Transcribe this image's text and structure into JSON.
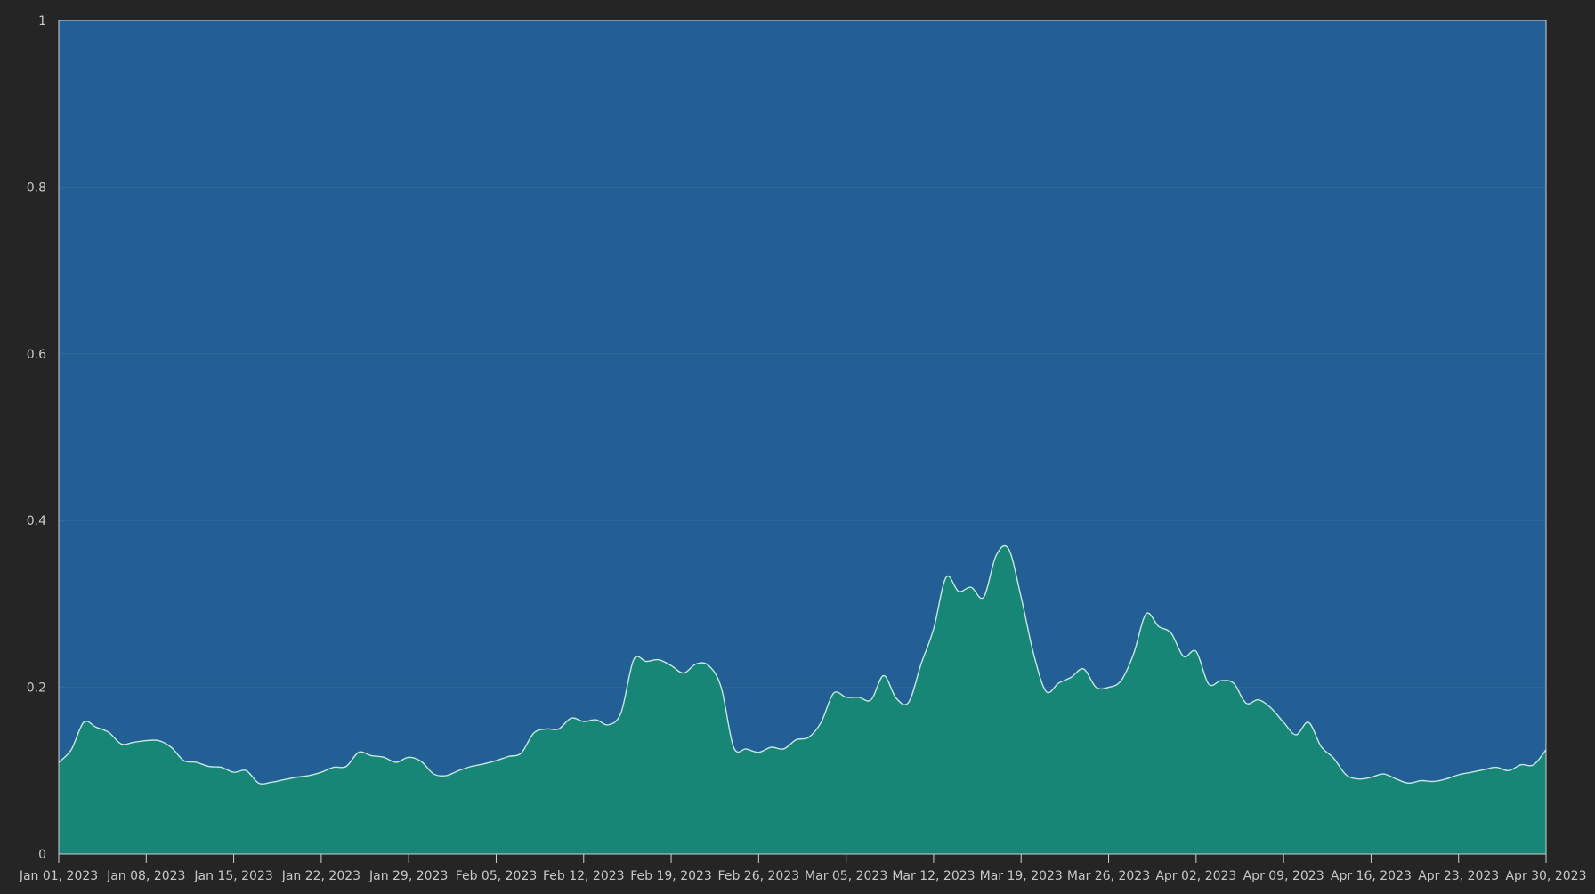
{
  "chart_data": {
    "type": "area",
    "title": "",
    "xlabel": "",
    "ylabel": "",
    "ylim": [
      0,
      1
    ],
    "xlim": [
      "2023-01-01",
      "2023-04-30"
    ],
    "grid": true,
    "legend": "none",
    "y_ticks": [
      {
        "value": 0,
        "label": "0"
      },
      {
        "value": 0.2,
        "label": "0.2"
      },
      {
        "value": 0.4,
        "label": "0.4"
      },
      {
        "value": 0.6,
        "label": "0.6"
      },
      {
        "value": 0.8,
        "label": "0.8"
      },
      {
        "value": 1,
        "label": "1"
      }
    ],
    "x_ticks": [
      {
        "value": "2023-01-01",
        "label": "Jan 01, 2023"
      },
      {
        "value": "2023-01-08",
        "label": "Jan 08, 2023"
      },
      {
        "value": "2023-01-15",
        "label": "Jan 15, 2023"
      },
      {
        "value": "2023-01-22",
        "label": "Jan 22, 2023"
      },
      {
        "value": "2023-01-29",
        "label": "Jan 29, 2023"
      },
      {
        "value": "2023-02-05",
        "label": "Feb 05, 2023"
      },
      {
        "value": "2023-02-12",
        "label": "Feb 12, 2023"
      },
      {
        "value": "2023-02-19",
        "label": "Feb 19, 2023"
      },
      {
        "value": "2023-02-26",
        "label": "Feb 26, 2023"
      },
      {
        "value": "2023-03-05",
        "label": "Mar 05, 2023"
      },
      {
        "value": "2023-03-12",
        "label": "Mar 12, 2023"
      },
      {
        "value": "2023-03-19",
        "label": "Mar 19, 2023"
      },
      {
        "value": "2023-03-26",
        "label": "Mar 26, 2023"
      },
      {
        "value": "2023-04-02",
        "label": "Apr 02, 2023"
      },
      {
        "value": "2023-04-09",
        "label": "Apr 09, 2023"
      },
      {
        "value": "2023-04-16",
        "label": "Apr 16, 2023"
      },
      {
        "value": "2023-04-23",
        "label": "Apr 23, 2023"
      },
      {
        "value": "2023-04-30",
        "label": "Apr 30, 2023"
      }
    ],
    "series": [
      {
        "color": "#178677",
        "x": [
          "2023-01-01",
          "2023-01-02",
          "2023-01-03",
          "2023-01-04",
          "2023-01-05",
          "2023-01-06",
          "2023-01-07",
          "2023-01-08",
          "2023-01-09",
          "2023-01-10",
          "2023-01-11",
          "2023-01-12",
          "2023-01-13",
          "2023-01-14",
          "2023-01-15",
          "2023-01-16",
          "2023-01-17",
          "2023-01-18",
          "2023-01-19",
          "2023-01-20",
          "2023-01-21",
          "2023-01-22",
          "2023-01-23",
          "2023-01-24",
          "2023-01-25",
          "2023-01-26",
          "2023-01-27",
          "2023-01-28",
          "2023-01-29",
          "2023-01-30",
          "2023-01-31",
          "2023-02-01",
          "2023-02-02",
          "2023-02-03",
          "2023-02-04",
          "2023-02-05",
          "2023-02-06",
          "2023-02-07",
          "2023-02-08",
          "2023-02-09",
          "2023-02-10",
          "2023-02-11",
          "2023-02-12",
          "2023-02-13",
          "2023-02-14",
          "2023-02-15",
          "2023-02-16",
          "2023-02-17",
          "2023-02-18",
          "2023-02-19",
          "2023-02-20",
          "2023-02-21",
          "2023-02-22",
          "2023-02-23",
          "2023-02-24",
          "2023-02-25",
          "2023-02-26",
          "2023-02-27",
          "2023-02-28",
          "2023-03-01",
          "2023-03-02",
          "2023-03-03",
          "2023-03-04",
          "2023-03-05",
          "2023-03-06",
          "2023-03-07",
          "2023-03-08",
          "2023-03-09",
          "2023-03-10",
          "2023-03-11",
          "2023-03-12",
          "2023-03-13",
          "2023-03-14",
          "2023-03-15",
          "2023-03-16",
          "2023-03-17",
          "2023-03-18",
          "2023-03-19",
          "2023-03-20",
          "2023-03-21",
          "2023-03-22",
          "2023-03-23",
          "2023-03-24",
          "2023-03-25",
          "2023-03-26",
          "2023-03-27",
          "2023-03-28",
          "2023-03-29",
          "2023-03-30",
          "2023-03-31",
          "2023-04-01",
          "2023-04-02",
          "2023-04-03",
          "2023-04-04",
          "2023-04-05",
          "2023-04-06",
          "2023-04-07",
          "2023-04-08",
          "2023-04-09",
          "2023-04-10",
          "2023-04-11",
          "2023-04-12",
          "2023-04-13",
          "2023-04-14",
          "2023-04-15",
          "2023-04-16",
          "2023-04-17",
          "2023-04-18",
          "2023-04-19",
          "2023-04-20",
          "2023-04-21",
          "2023-04-22",
          "2023-04-23",
          "2023-04-24",
          "2023-04-25",
          "2023-04-26",
          "2023-04-27",
          "2023-04-28",
          "2023-04-29",
          "2023-04-30"
        ],
        "values": [
          0.11,
          0.125,
          0.158,
          0.152,
          0.146,
          0.132,
          0.134,
          0.136,
          0.136,
          0.128,
          0.112,
          0.11,
          0.105,
          0.104,
          0.098,
          0.1,
          0.085,
          0.086,
          0.089,
          0.092,
          0.094,
          0.098,
          0.104,
          0.105,
          0.122,
          0.118,
          0.116,
          0.11,
          0.116,
          0.111,
          0.096,
          0.094,
          0.1,
          0.105,
          0.108,
          0.112,
          0.117,
          0.121,
          0.145,
          0.15,
          0.15,
          0.163,
          0.159,
          0.161,
          0.155,
          0.17,
          0.233,
          0.231,
          0.233,
          0.226,
          0.217,
          0.228,
          0.226,
          0.2,
          0.128,
          0.126,
          0.122,
          0.128,
          0.126,
          0.137,
          0.14,
          0.158,
          0.193,
          0.188,
          0.188,
          0.185,
          0.214,
          0.187,
          0.182,
          0.228,
          0.27,
          0.332,
          0.315,
          0.32,
          0.308,
          0.358,
          0.366,
          0.308,
          0.24,
          0.195,
          0.205,
          0.212,
          0.222,
          0.2,
          0.2,
          0.208,
          0.24,
          0.288,
          0.273,
          0.265,
          0.237,
          0.243,
          0.204,
          0.208,
          0.205,
          0.181,
          0.185,
          0.175,
          0.158,
          0.143,
          0.158,
          0.129,
          0.115,
          0.095,
          0.09,
          0.092,
          0.096,
          0.09,
          0.085,
          0.088,
          0.087,
          0.09,
          0.095,
          0.098,
          0.101,
          0.104,
          0.1,
          0.107,
          0.107,
          0.125
        ]
      }
    ]
  },
  "colors": {
    "page_background": "#252525",
    "plot_background": "#225f94",
    "area_fill": "#178677",
    "area_line": "#c7e6df",
    "grid": "#2d6a9b",
    "axis": "#cfcfcf",
    "tick_text": "#c8c8c8"
  }
}
